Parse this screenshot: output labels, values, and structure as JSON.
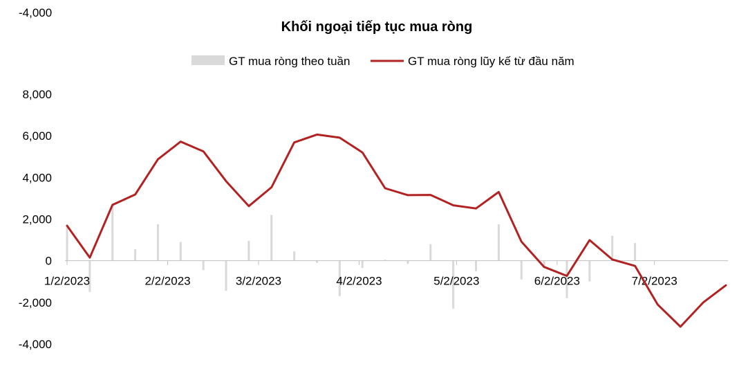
{
  "chart_data": {
    "type": "bar+line",
    "title": "Khối ngoại tiếp tục mua ròng",
    "stray_label": "-4,000",
    "legend_position": "top",
    "y_ticks": [
      "8,000",
      "6,000",
      "4,000",
      "2,000",
      "0",
      "-2,000",
      "-4,000"
    ],
    "ylim": [
      -4000,
      8000
    ],
    "x_tick_labels": [
      "1/2/2023",
      "2/2/2023",
      "3/2/2023",
      "4/2/2023",
      "5/2/2023",
      "6/2/2023",
      "7/2/2023"
    ],
    "x_tick_dates": [
      "2023-01-02",
      "2023-02-02",
      "2023-03-02",
      "2023-04-02",
      "2023-05-02",
      "2023-06-02",
      "2023-07-02"
    ],
    "dates": [
      "2023-01-02",
      "2023-01-09",
      "2023-01-16",
      "2023-01-23",
      "2023-01-30",
      "2023-02-06",
      "2023-02-13",
      "2023-02-20",
      "2023-02-27",
      "2023-03-06",
      "2023-03-13",
      "2023-03-20",
      "2023-03-27",
      "2023-04-03",
      "2023-04-10",
      "2023-04-17",
      "2023-04-24",
      "2023-05-01",
      "2023-05-08",
      "2023-05-15",
      "2023-05-22",
      "2023-05-29",
      "2023-06-05",
      "2023-06-12",
      "2023-06-19",
      "2023-06-26",
      "2023-07-03",
      "2023-07-10",
      "2023-07-17",
      "2023-07-24"
    ],
    "colors": {
      "bar": "#d9d9d9",
      "line": "#b22222",
      "axis": "#bfbfbf"
    },
    "series": [
      {
        "name": "GT mua ròng theo tuần",
        "type": "bar",
        "values": [
          1700,
          -1500,
          2700,
          550,
          1750,
          900,
          -450,
          -1450,
          950,
          2200,
          450,
          -100,
          -1700,
          -350,
          50,
          -150,
          800,
          -2300,
          -500,
          1750,
          -900,
          -300,
          -1800,
          -1000,
          1200,
          850,
          0,
          0,
          0,
          0
        ]
      },
      {
        "name": "GT mua ròng lũy kế từ đầu năm",
        "type": "line",
        "values": [
          1680,
          150,
          2680,
          3180,
          4870,
          5720,
          5250,
          3820,
          2620,
          3530,
          5680,
          6060,
          5910,
          5200,
          3480,
          3150,
          3160,
          2660,
          2510,
          3300,
          920,
          -300,
          -730,
          990,
          60,
          -250,
          -2110,
          -3170,
          -2010,
          -1180
        ]
      }
    ]
  }
}
